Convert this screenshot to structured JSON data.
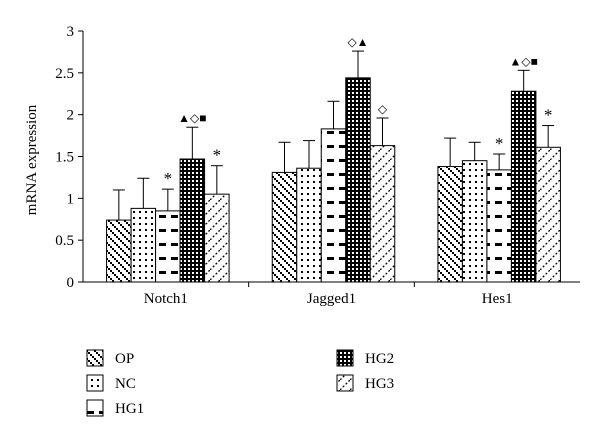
{
  "chart_data": {
    "type": "bar",
    "title": "",
    "xlabel": "",
    "ylabel": "mRNA expression",
    "ylim": [
      0,
      3
    ],
    "yticks": [
      "0",
      "0.5",
      "1",
      "1.5",
      "2",
      "2.5",
      "3"
    ],
    "grid": false,
    "legend_position": "bottom",
    "categories": [
      "Notch1",
      "Jagged1",
      "Hes1"
    ],
    "series": [
      {
        "name": "OP",
        "pattern": "diag-dots",
        "values": [
          0.74,
          1.31,
          1.38
        ],
        "errors": [
          0.36,
          0.36,
          0.34
        ],
        "marks": [
          "",
          "",
          ""
        ]
      },
      {
        "name": "NC",
        "pattern": "dots",
        "values": [
          0.88,
          1.36,
          1.45
        ],
        "errors": [
          0.36,
          0.33,
          0.22
        ],
        "marks": [
          "",
          "",
          ""
        ]
      },
      {
        "name": "HG1",
        "pattern": "dashes",
        "values": [
          0.85,
          1.83,
          1.34
        ],
        "errors": [
          0.26,
          0.33,
          0.19
        ],
        "marks": [
          "*",
          "",
          "*"
        ]
      },
      {
        "name": "HG2",
        "pattern": "checker",
        "values": [
          1.47,
          2.44,
          2.28
        ],
        "errors": [
          0.38,
          0.32,
          0.25
        ],
        "marks": [
          "▲◇■",
          "◇▲",
          "▲◇■"
        ]
      },
      {
        "name": "HG3",
        "pattern": "slash",
        "values": [
          1.05,
          1.63,
          1.61
        ],
        "errors": [
          0.34,
          0.33,
          0.26
        ],
        "marks": [
          "*",
          "◇",
          "*"
        ]
      }
    ]
  }
}
